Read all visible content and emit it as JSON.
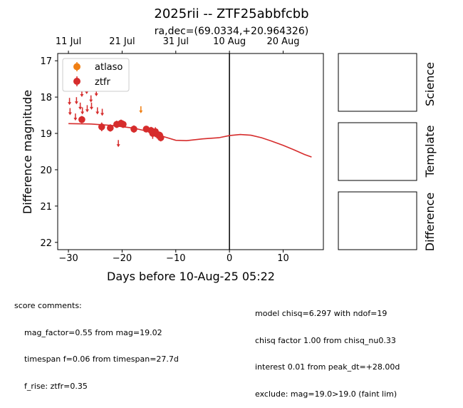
{
  "chart_data": {
    "type": "scatter",
    "title": "2025rii -- ZTF25abbfcbb",
    "subtitle": "ra,dec=(69.0334,+20.964326)",
    "xlabel": "Days before 10-Aug-25 05:22",
    "ylabel": "Difference magnitude",
    "xlim": [
      -32,
      17.5
    ],
    "ylim": [
      22.2,
      16.8
    ],
    "x_ticks": [
      -30,
      -20,
      -10,
      0,
      10
    ],
    "x_tick_labels": [
      "−30",
      "−20",
      "−10",
      "0",
      "10"
    ],
    "y_ticks": [
      17,
      18,
      19,
      20,
      21,
      22
    ],
    "y_tick_labels": [
      "17",
      "18",
      "19",
      "20",
      "21",
      "22"
    ],
    "top_ticks": [
      -30,
      -20,
      -10,
      0,
      10
    ],
    "top_tick_labels": [
      "11 Jul",
      "21 Jul",
      "31 Jul",
      "10 Aug",
      "20 Aug"
    ],
    "vline_x": 0,
    "grid": false,
    "legend_position": "top-left",
    "legend": [
      {
        "name": "atlaso",
        "color": "#f07f13"
      },
      {
        "name": "ztfr",
        "color": "#d62c2c"
      }
    ],
    "series": [
      {
        "name": "ztfr",
        "kind": "detections",
        "color": "#d62c2c",
        "points": [
          {
            "x": -27.5,
            "y": 18.62,
            "err": 0.1
          },
          {
            "x": -23.8,
            "y": 18.82,
            "err": 0.12
          },
          {
            "x": -22.2,
            "y": 18.85,
            "err": 0.1
          },
          {
            "x": -21.0,
            "y": 18.75,
            "err": 0.1
          },
          {
            "x": -20.2,
            "y": 18.72,
            "err": 0.1
          },
          {
            "x": -19.8,
            "y": 18.75,
            "err": 0.1
          },
          {
            "x": -17.8,
            "y": 18.88,
            "err": 0.1
          },
          {
            "x": -15.5,
            "y": 18.88,
            "err": 0.08
          },
          {
            "x": -14.6,
            "y": 18.92,
            "err": 0.1
          },
          {
            "x": -14.3,
            "y": 19.0,
            "err": 0.15
          },
          {
            "x": -13.8,
            "y": 18.95,
            "err": 0.12
          },
          {
            "x": -13.5,
            "y": 19.02,
            "err": 0.12
          },
          {
            "x": -13.0,
            "y": 19.05,
            "err": 0.1
          },
          {
            "x": -12.8,
            "y": 19.12,
            "err": 0.1
          }
        ]
      },
      {
        "name": "ztfr",
        "kind": "upper_limits",
        "color": "#d62c2c",
        "points": [
          {
            "x": -29.8,
            "y": 18.12
          },
          {
            "x": -29.7,
            "y": 18.4
          },
          {
            "x": -28.7,
            "y": 18.55
          },
          {
            "x": -28.5,
            "y": 18.1
          },
          {
            "x": -27.8,
            "y": 18.25
          },
          {
            "x": -27.5,
            "y": 17.9
          },
          {
            "x": -27.4,
            "y": 18.38
          },
          {
            "x": -26.6,
            "y": 17.82
          },
          {
            "x": -26.5,
            "y": 18.32
          },
          {
            "x": -25.8,
            "y": 18.05
          },
          {
            "x": -25.7,
            "y": 18.25
          },
          {
            "x": -24.8,
            "y": 17.88
          },
          {
            "x": -24.6,
            "y": 18.38
          },
          {
            "x": -23.7,
            "y": 18.42
          },
          {
            "x": -20.7,
            "y": 19.28
          }
        ]
      },
      {
        "name": "atlaso",
        "kind": "upper_limits",
        "color": "#f07f13",
        "points": [
          {
            "x": -16.5,
            "y": 18.35
          }
        ]
      },
      {
        "name": "model",
        "kind": "curve",
        "color": "#d62c2c",
        "points": [
          {
            "x": -30,
            "y": 18.73
          },
          {
            "x": -26,
            "y": 18.74
          },
          {
            "x": -22,
            "y": 18.78
          },
          {
            "x": -18,
            "y": 18.85
          },
          {
            "x": -15,
            "y": 18.95
          },
          {
            "x": -12,
            "y": 19.1
          },
          {
            "x": -10,
            "y": 19.19
          },
          {
            "x": -8,
            "y": 19.2
          },
          {
            "x": -5,
            "y": 19.15
          },
          {
            "x": -2,
            "y": 19.12
          },
          {
            "x": 0,
            "y": 19.06
          },
          {
            "x": 2,
            "y": 19.03
          },
          {
            "x": 4,
            "y": 19.05
          },
          {
            "x": 6,
            "y": 19.12
          },
          {
            "x": 8,
            "y": 19.22
          },
          {
            "x": 10,
            "y": 19.33
          },
          {
            "x": 12,
            "y": 19.45
          },
          {
            "x": 14,
            "y": 19.58
          },
          {
            "x": 15.3,
            "y": 19.65
          }
        ]
      }
    ]
  },
  "panels": [
    "Science",
    "Template",
    "Difference"
  ],
  "comments": {
    "left": [
      "score comments:",
      "    mag_factor=0.55 from mag=19.02",
      "    timespan f=0.06 from timespan=27.7d",
      "    f_rise: ztfr=0.35"
    ],
    "right": [
      "model chisq=6.297 with ndof=19",
      "chisq factor 1.00 from chisq_nu0.33",
      "interest 0.01 from peak_dt=+28.00d",
      "exclude: mag=19.0>19.0 (faint lim)"
    ]
  }
}
